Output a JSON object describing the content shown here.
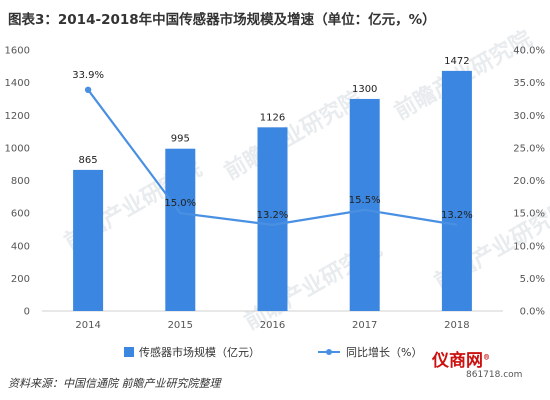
{
  "chart_data": {
    "type": "bar",
    "title": "图表3：2014-2018年中国传感器市场规模及增速（单位：亿元，%）",
    "categories": [
      "2014",
      "2015",
      "2016",
      "2017",
      "2018"
    ],
    "series": [
      {
        "name": "传感器市场规模（亿元）",
        "type": "bar",
        "axis": "left",
        "values": [
          865,
          995,
          1126,
          1300,
          1472
        ],
        "labels": [
          "865",
          "995",
          "1126",
          "1300",
          "1472"
        ],
        "color": "#3b86e0"
      },
      {
        "name": "同比增长（%）",
        "type": "line",
        "axis": "right",
        "values": [
          33.9,
          15.0,
          13.2,
          15.5,
          13.2
        ],
        "labels": [
          "33.9%",
          "15.0%",
          "13.2%",
          "15.5%",
          "13.2%"
        ],
        "color": "#4a90e2"
      }
    ],
    "y_left": {
      "ylim": [
        0,
        1600
      ],
      "ticks": [
        "0",
        "200",
        "400",
        "600",
        "800",
        "1000",
        "1200",
        "1400",
        "1600"
      ]
    },
    "y_right": {
      "ylim": [
        0,
        40
      ],
      "ticks": [
        "0.0%",
        "5.0%",
        "10.0%",
        "15.0%",
        "20.0%",
        "25.0%",
        "30.0%",
        "35.0%",
        "40.0%"
      ]
    },
    "grid": false,
    "legend": "bottom"
  },
  "source": "资料来源：中国信通院 前瞻产业研究院整理",
  "watermark": "前瞻产业研究院",
  "brand": {
    "name": "仪商网",
    "url": "861718.com"
  }
}
